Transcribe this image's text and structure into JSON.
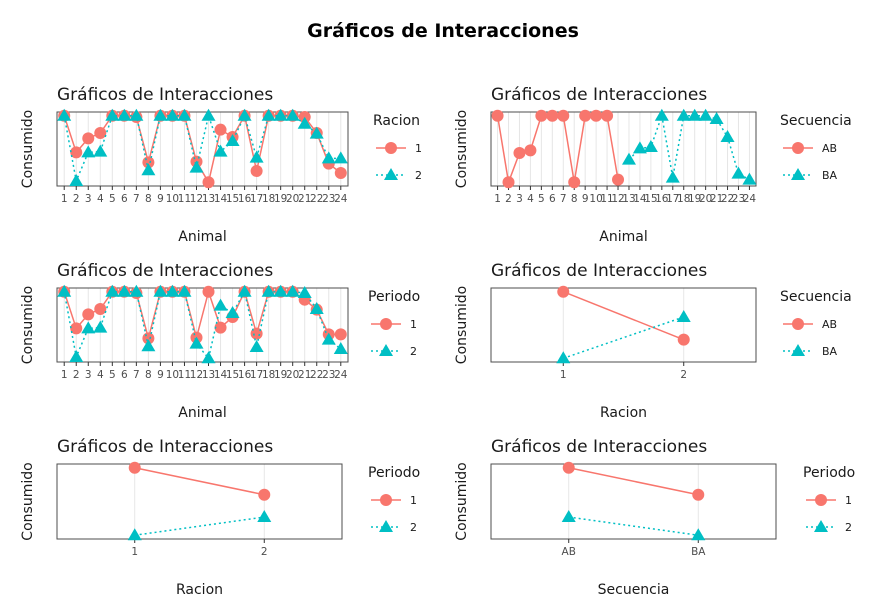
{
  "title": "Gráficos de Interacciones",
  "colors": {
    "series1": "#F8766D",
    "series2": "#00BFC4"
  },
  "chart_data": [
    {
      "type": "line",
      "title": "Gráficos de Interacciones",
      "xlabel": "Animal",
      "ylabel": "Consumido",
      "legend_title": "Racion",
      "legend_position": "right",
      "y_scale": "normalized (no y tick labels shown)",
      "ylim": [
        0,
        1
      ],
      "categories": [
        "1",
        "2",
        "3",
        "4",
        "5",
        "6",
        "7",
        "8",
        "9",
        "10",
        "11",
        "12",
        "13",
        "14",
        "15",
        "16",
        "17",
        "18",
        "19",
        "20",
        "21",
        "22",
        "23",
        "24"
      ],
      "series": [
        {
          "name": "1",
          "values": [
            1,
            0.45,
            0.66,
            0.74,
            1,
            1,
            0.98,
            0.3,
            1,
            1,
            1,
            0.31,
            0,
            0.79,
            0.68,
            1,
            0.17,
            1,
            1,
            1,
            0.98,
            0.74,
            0.28,
            0.14
          ]
        },
        {
          "name": "2",
          "values": [
            1,
            0.02,
            0.45,
            0.46,
            1,
            1,
            1,
            0.18,
            1,
            1,
            1,
            0.22,
            1,
            0.46,
            0.62,
            1,
            0.37,
            1,
            1,
            1,
            0.88,
            0.73,
            0.36,
            0.36
          ]
        }
      ]
    },
    {
      "type": "line",
      "title": "Gráficos de Interacciones",
      "xlabel": "Animal",
      "ylabel": "Consumido",
      "legend_title": "Secuencia",
      "legend_position": "right",
      "y_scale": "normalized (no y tick labels shown)",
      "ylim": [
        0,
        1
      ],
      "categories": [
        "1",
        "2",
        "3",
        "4",
        "5",
        "6",
        "7",
        "8",
        "9",
        "10",
        "11",
        "12",
        "13",
        "14",
        "15",
        "16",
        "17",
        "18",
        "19",
        "20",
        "21",
        "22",
        "23",
        "24"
      ],
      "series": [
        {
          "name": "AB",
          "values": [
            1,
            0,
            0.44,
            0.48,
            1,
            1,
            1,
            0,
            1,
            1,
            1,
            0.04,
            null,
            null,
            null,
            null,
            null,
            null,
            null,
            null,
            null,
            null,
            null,
            null
          ]
        },
        {
          "name": "BA",
          "values": [
            null,
            null,
            null,
            null,
            null,
            null,
            null,
            null,
            null,
            null,
            null,
            null,
            0.34,
            0.51,
            0.53,
            1,
            0.07,
            1,
            1,
            1,
            0.95,
            0.68,
            0.13,
            0.04
          ]
        }
      ]
    },
    {
      "type": "line",
      "title": "Gráficos de Interacciones",
      "xlabel": "Animal",
      "ylabel": "Consumido",
      "legend_title": "Periodo",
      "legend_position": "right",
      "y_scale": "normalized (no y tick labels shown)",
      "ylim": [
        0,
        1
      ],
      "categories": [
        "1",
        "2",
        "3",
        "4",
        "5",
        "6",
        "7",
        "8",
        "9",
        "10",
        "11",
        "12",
        "13",
        "14",
        "15",
        "16",
        "17",
        "18",
        "19",
        "20",
        "21",
        "22",
        "23",
        "24"
      ],
      "series": [
        {
          "name": "1",
          "values": [
            1,
            0.45,
            0.66,
            0.74,
            1,
            1,
            0.98,
            0.3,
            1,
            1,
            1,
            0.31,
            1,
            0.46,
            0.62,
            1,
            0.37,
            1,
            1,
            1,
            0.88,
            0.73,
            0.36,
            0.36
          ]
        },
        {
          "name": "2",
          "values": [
            1,
            0.02,
            0.45,
            0.46,
            1,
            1,
            1,
            0.18,
            1,
            1,
            1,
            0.22,
            0,
            0.79,
            0.68,
            1,
            0.17,
            1,
            1,
            1,
            0.98,
            0.74,
            0.28,
            0.14
          ]
        }
      ]
    },
    {
      "type": "line",
      "title": "Gráficos de Interacciones",
      "xlabel": "Racion",
      "ylabel": "Consumido",
      "legend_title": "Secuencia",
      "legend_position": "right",
      "y_scale": "normalized (no y tick labels shown)",
      "ylim": [
        0,
        1
      ],
      "categories": [
        "1",
        "2"
      ],
      "series": [
        {
          "name": "AB",
          "values": [
            1,
            0.28
          ]
        },
        {
          "name": "BA",
          "values": [
            0,
            0.62
          ]
        }
      ]
    },
    {
      "type": "line",
      "title": "Gráficos de Interacciones",
      "xlabel": "Racion",
      "ylabel": "Consumido",
      "legend_title": "Periodo",
      "legend_position": "right",
      "y_scale": "normalized (no y tick labels shown)",
      "ylim": [
        0,
        1
      ],
      "categories": [
        "1",
        "2"
      ],
      "series": [
        {
          "name": "1",
          "values": [
            1,
            0.6
          ]
        },
        {
          "name": "2",
          "values": [
            0,
            0.27
          ]
        }
      ]
    },
    {
      "type": "line",
      "title": "Gráficos de Interacciones",
      "xlabel": "Secuencia",
      "ylabel": "Consumido",
      "legend_title": "Periodo",
      "legend_position": "right",
      "y_scale": "normalized (no y tick labels shown)",
      "ylim": [
        0,
        1
      ],
      "categories": [
        "AB",
        "BA"
      ],
      "series": [
        {
          "name": "1",
          "values": [
            1,
            0.6
          ]
        },
        {
          "name": "2",
          "values": [
            0.27,
            0
          ]
        }
      ]
    }
  ]
}
